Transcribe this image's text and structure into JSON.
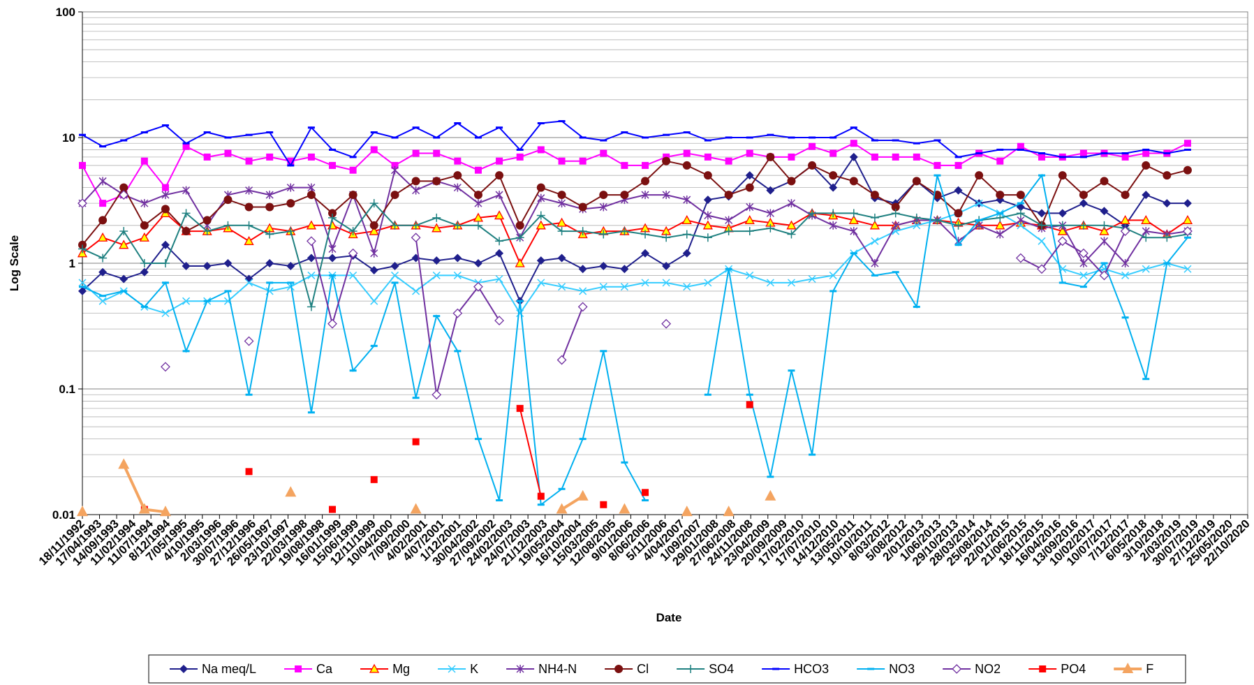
{
  "chart_data": {
    "type": "line",
    "y_label": "Log Scale",
    "x_label": "Date",
    "log_scale": true,
    "grid": true,
    "minor_grid": true,
    "legend": "bottom",
    "ylim": [
      0.01,
      100
    ],
    "yticks": [
      0.01,
      0.1,
      1,
      10,
      100
    ],
    "xlim": [
      "18/11/1992",
      "22/10/2020"
    ],
    "xticks": [
      "18/11/1992",
      "17/04/1993",
      "14/09/1993",
      "11/02/1994",
      "11/07/1994",
      "8/12/1994",
      "7/05/1995",
      "4/10/1995",
      "2/03/1996",
      "30/07/1996",
      "27/12/1996",
      "26/05/1997",
      "23/10/1997",
      "22/03/1998",
      "19/08/1998",
      "16/01/1999",
      "15/06/1999",
      "12/11/1999",
      "10/04/2000",
      "7/09/2000",
      "4/02/2001",
      "4/07/2001",
      "1/12/2001",
      "30/04/2002",
      "27/09/2002",
      "24/02/2003",
      "24/07/2003",
      "21/12/2003",
      "19/05/2004",
      "16/10/2004",
      "15/03/2005",
      "12/08/2005",
      "9/01/2006",
      "8/06/2006",
      "5/11/2006",
      "4/04/2007",
      "1/09/2007",
      "29/01/2008",
      "27/06/2008",
      "24/11/2008",
      "23/04/2009",
      "20/09/2009",
      "17/02/2010",
      "17/07/2010",
      "14/12/2010",
      "13/05/2011",
      "10/10/2011",
      "8/03/2012",
      "5/08/2012",
      "2/01/2013",
      "1/06/2013",
      "29/10/2013",
      "28/03/2014",
      "25/08/2014",
      "22/01/2015",
      "21/06/2015",
      "18/11/2015",
      "16/04/2016",
      "13/09/2016",
      "10/02/2017",
      "10/07/2017",
      "7/12/2017",
      "6/05/2018",
      "3/10/2018",
      "2/03/2019",
      "30/07/2019",
      "27/12/2019",
      "25/05/2020",
      "22/10/2020"
    ],
    "x": [
      "18/11/1992",
      "15/05/1993",
      "15/11/1993",
      "15/05/1994",
      "15/11/1994",
      "15/05/1995",
      "15/11/1995",
      "15/05/1996",
      "15/11/1996",
      "15/05/1997",
      "15/11/1997",
      "15/05/1998",
      "15/11/1998",
      "15/05/1999",
      "15/11/1999",
      "15/05/2000",
      "15/11/2000",
      "15/05/2001",
      "15/11/2001",
      "15/05/2002",
      "15/11/2002",
      "15/05/2003",
      "15/11/2003",
      "15/05/2004",
      "15/11/2004",
      "15/05/2005",
      "15/11/2005",
      "15/05/2006",
      "15/11/2006",
      "15/05/2007",
      "15/11/2007",
      "15/05/2008",
      "15/11/2008",
      "15/05/2009",
      "15/11/2009",
      "15/05/2010",
      "15/11/2010",
      "15/05/2011",
      "15/11/2011",
      "15/05/2012",
      "15/11/2012",
      "15/05/2013",
      "15/11/2013",
      "15/05/2014",
      "15/11/2014",
      "15/05/2015",
      "15/11/2015",
      "15/05/2016",
      "15/11/2016",
      "15/05/2017",
      "15/11/2017",
      "15/05/2018",
      "15/11/2018",
      "15/05/2019"
    ],
    "series": [
      {
        "name": "Na meq/L",
        "color": "#1f1f8c",
        "marker": "diamond",
        "values": [
          0.6,
          0.85,
          0.75,
          0.85,
          1.4,
          0.95,
          0.95,
          1.0,
          0.75,
          1.0,
          0.95,
          1.1,
          1.1,
          1.15,
          0.88,
          0.95,
          1.1,
          1.05,
          1.1,
          1.0,
          1.2,
          0.5,
          1.05,
          1.1,
          0.9,
          0.95,
          0.9,
          1.2,
          0.95,
          1.2,
          3.2,
          3.4,
          5.0,
          3.8,
          4.5,
          6.0,
          4.0,
          7.0,
          3.3,
          3.0,
          4.5,
          3.3,
          3.8,
          3.0,
          3.2,
          2.8,
          2.5,
          2.5,
          3.0,
          2.6,
          2.0,
          3.5,
          3.0,
          3.0
        ]
      },
      {
        "name": "Ca",
        "color": "#ff00ff",
        "marker": "square",
        "values": [
          6,
          3,
          3.5,
          6.5,
          4,
          8.5,
          7,
          7.5,
          6.5,
          7,
          6.5,
          7,
          6,
          5.5,
          8,
          6,
          7.5,
          7.5,
          6.5,
          5.5,
          6.5,
          7,
          8,
          6.5,
          6.5,
          7.5,
          6,
          6,
          7,
          7.5,
          7,
          6.5,
          7.5,
          7,
          7,
          8.5,
          7.5,
          9,
          7,
          7,
          7,
          6,
          6,
          7.5,
          6.5,
          8.5,
          7,
          7,
          7.5,
          7.5,
          7,
          7.5,
          7.5,
          9
        ]
      },
      {
        "name": "Mg",
        "color": "#ff0000",
        "marker": "triangle",
        "values": [
          1.2,
          1.6,
          1.4,
          1.6,
          2.5,
          1.8,
          1.8,
          1.9,
          1.5,
          1.9,
          1.8,
          2.0,
          2.0,
          1.7,
          1.8,
          2.0,
          2.0,
          1.9,
          2.0,
          2.3,
          2.4,
          1.0,
          2.0,
          2.1,
          1.7,
          1.8,
          1.8,
          1.9,
          1.8,
          2.2,
          2.0,
          1.9,
          2.2,
          2.1,
          2.0,
          2.5,
          2.4,
          2.2,
          2.0,
          2.0,
          2.2,
          2.2,
          2.1,
          2.0,
          2.0,
          2.1,
          2.0,
          1.8,
          2.0,
          1.8,
          2.2,
          2.2,
          1.7,
          2.2
        ]
      },
      {
        "name": "K",
        "color": "#33ccff",
        "marker": "x",
        "values": [
          0.7,
          0.5,
          0.6,
          0.45,
          0.4,
          0.5,
          0.5,
          0.5,
          0.7,
          0.6,
          0.65,
          0.8,
          0.8,
          0.8,
          0.5,
          0.8,
          0.6,
          0.8,
          0.8,
          0.7,
          0.75,
          0.4,
          0.7,
          0.65,
          0.6,
          0.65,
          0.65,
          0.7,
          0.7,
          0.65,
          0.7,
          0.9,
          0.8,
          0.7,
          0.7,
          0.75,
          0.8,
          1.2,
          1.5,
          1.8,
          2.0,
          2.2,
          2.5,
          3.0,
          2.5,
          2.0,
          1.5,
          0.9,
          0.8,
          0.9,
          0.8,
          0.9,
          1.0,
          0.9
        ]
      },
      {
        "name": "NH4-N",
        "color": "#7030a0",
        "marker": "asterisk",
        "values": [
          3.0,
          4.5,
          3.5,
          3.0,
          3.5,
          3.8,
          2.0,
          3.5,
          3.8,
          3.5,
          4.0,
          4.0,
          1.3,
          3.5,
          1.2,
          5.5,
          3.8,
          4.5,
          4.0,
          3.0,
          3.5,
          1.6,
          3.3,
          3.0,
          2.7,
          2.8,
          3.2,
          3.5,
          3.5,
          3.2,
          2.4,
          2.2,
          2.8,
          2.5,
          3.0,
          2.4,
          2.0,
          1.8,
          1.0,
          2.0,
          2.2,
          2.2,
          1.5,
          2.0,
          1.7,
          2.2,
          1.9,
          2.0,
          1.0,
          1.5,
          1.0,
          1.8,
          1.7,
          1.8
        ]
      },
      {
        "name": "Cl",
        "color": "#7b1010",
        "marker": "circle",
        "values": [
          1.4,
          2.2,
          4.0,
          2.0,
          2.7,
          1.8,
          2.2,
          3.2,
          2.8,
          2.8,
          3.0,
          3.5,
          2.5,
          3.5,
          2.0,
          3.5,
          4.5,
          4.5,
          5.0,
          3.5,
          5.0,
          2.0,
          4.0,
          3.5,
          2.8,
          3.5,
          3.5,
          4.5,
          6.5,
          6.0,
          5.0,
          3.5,
          4.0,
          7.0,
          4.5,
          6.0,
          5.0,
          4.5,
          3.5,
          2.8,
          4.5,
          3.5,
          2.5,
          5.0,
          3.5,
          3.5,
          2.0,
          5.0,
          3.5,
          4.5,
          3.5,
          6.0,
          5.0,
          5.5
        ]
      },
      {
        "name": "SO4",
        "color": "#1f8080",
        "marker": "plus",
        "values": [
          1.3,
          1.1,
          1.8,
          1.0,
          1.0,
          2.5,
          1.8,
          2.0,
          2.0,
          1.7,
          1.8,
          0.45,
          2.3,
          1.8,
          3.0,
          2.0,
          2.0,
          2.3,
          2.0,
          2.0,
          1.5,
          1.6,
          2.4,
          1.8,
          1.8,
          1.7,
          1.8,
          1.7,
          1.6,
          1.7,
          1.6,
          1.8,
          1.8,
          1.9,
          1.7,
          2.5,
          2.5,
          2.5,
          2.3,
          2.5,
          2.3,
          2.2,
          2.0,
          2.2,
          2.3,
          2.5,
          2.0,
          2.0,
          2.0,
          2.0,
          1.9,
          1.6,
          1.6,
          1.7
        ]
      },
      {
        "name": "HCO3",
        "color": "#0000ff",
        "marker": "dash",
        "values": [
          10.5,
          8.5,
          9.5,
          11,
          12.5,
          9,
          11,
          10,
          10.5,
          11,
          6,
          12,
          8,
          7,
          11,
          10,
          12,
          10,
          13,
          10,
          12,
          8,
          13,
          13.5,
          10,
          9.5,
          11,
          10,
          10.5,
          11,
          9.5,
          10,
          10,
          10.5,
          10,
          10,
          10,
          12,
          9.5,
          9.5,
          9,
          9.5,
          7,
          7.5,
          8,
          8,
          7.5,
          7,
          7,
          7.5,
          7.5,
          8,
          7.5,
          8
        ]
      },
      {
        "name": "NO3",
        "color": "#00b0f0",
        "marker": "dash",
        "values": [
          0.65,
          0.55,
          0.6,
          0.45,
          0.7,
          0.2,
          0.5,
          0.6,
          0.09,
          0.7,
          0.7,
          0.065,
          0.8,
          0.14,
          0.22,
          0.7,
          0.085,
          0.38,
          0.2,
          0.04,
          0.013,
          0.5,
          0.012,
          0.016,
          0.04,
          0.2,
          0.026,
          0.013,
          null,
          null,
          0.09,
          0.9,
          0.09,
          0.02,
          0.14,
          0.03,
          0.6,
          1.2,
          0.8,
          0.85,
          0.45,
          5,
          1.4,
          2.2,
          2.5,
          3,
          5,
          0.7,
          0.65,
          1.0,
          0.37,
          0.12,
          1.0,
          1.6
        ]
      },
      {
        "name": "NO2",
        "color": "#7030a0",
        "marker": "diamond-open",
        "values": [
          3.0,
          null,
          3.5,
          null,
          0.15,
          null,
          null,
          null,
          0.24,
          null,
          null,
          1.5,
          0.33,
          1.2,
          null,
          null,
          1.6,
          0.09,
          0.4,
          0.65,
          0.35,
          null,
          null,
          0.17,
          0.45,
          null,
          null,
          null,
          0.33,
          null,
          null,
          null,
          null,
          null,
          null,
          null,
          null,
          null,
          null,
          null,
          null,
          null,
          null,
          null,
          null,
          1.1,
          0.9,
          1.5,
          1.2,
          0.8,
          1.8,
          null,
          null,
          1.8
        ]
      },
      {
        "name": "PO4",
        "color": "#ff0000",
        "marker": "square",
        "values": [
          null,
          null,
          null,
          0.011,
          null,
          null,
          null,
          null,
          0.022,
          null,
          null,
          null,
          0.011,
          null,
          0.019,
          null,
          0.038,
          null,
          null,
          null,
          null,
          0.07,
          0.014,
          null,
          null,
          0.012,
          null,
          0.015,
          null,
          null,
          null,
          null,
          0.075,
          null,
          null,
          null,
          null,
          null,
          null,
          null,
          null,
          null,
          null,
          null,
          null,
          null,
          null,
          null,
          null,
          null,
          null,
          null,
          null,
          null
        ]
      },
      {
        "name": "F",
        "color": "#f4a460",
        "marker": "triangle-fill",
        "values": [
          0.0105,
          null,
          0.025,
          0.011,
          0.0105,
          null,
          null,
          null,
          null,
          null,
          0.015,
          null,
          null,
          null,
          null,
          null,
          0.011,
          null,
          null,
          null,
          null,
          null,
          null,
          0.011,
          0.014,
          null,
          0.011,
          null,
          null,
          0.0105,
          null,
          0.0105,
          null,
          0.014,
          null,
          null,
          null,
          null,
          null,
          null,
          null,
          null,
          null,
          null,
          null,
          null,
          null,
          null,
          null,
          null,
          null,
          null,
          null,
          null
        ]
      }
    ]
  }
}
